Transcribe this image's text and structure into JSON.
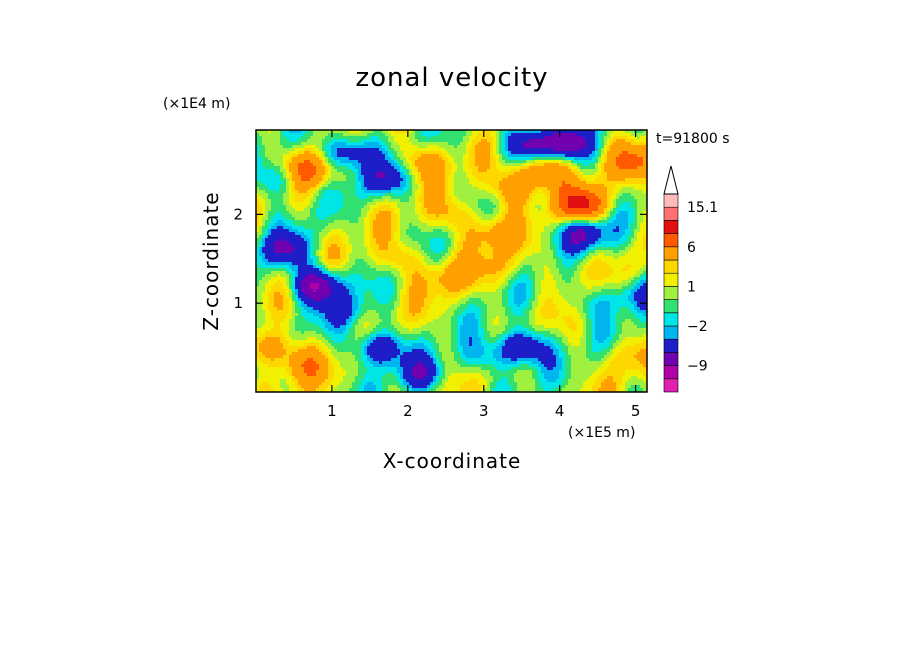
{
  "chart_data": {
    "type": "heatmap",
    "title": "zonal velocity",
    "xlabel": "X-coordinate",
    "ylabel": "Z-coordinate",
    "x_unit_label": "(×1E5 m)",
    "y_unit_label": "(×1E4 m)",
    "time_label": "t=91800 s",
    "xlim": [
      0,
      5.15
    ],
    "ylim": [
      0,
      2.95
    ],
    "x_ticks": [
      1,
      2,
      3,
      4,
      5
    ],
    "y_ticks": [
      1,
      2
    ],
    "x_tick_labels": [
      "1",
      "2",
      "3",
      "4",
      "5"
    ],
    "y_tick_labels": [
      "1",
      "2"
    ],
    "colorbar": {
      "levels": [
        -15,
        -12,
        -9,
        -6,
        -3,
        -2,
        -1,
        0,
        1,
        2,
        3,
        6,
        9,
        12,
        15.1
      ],
      "colors": [
        "#e020b0",
        "#b000a8",
        "#7000b0",
        "#1e1ec8",
        "#00b4f0",
        "#00e6e6",
        "#30e070",
        "#a0f040",
        "#f0f000",
        "#ffd700",
        "#ffa000",
        "#ff5a00",
        "#e01010",
        "#ff7070",
        "#ffbcbc"
      ],
      "labels": [
        {
          "value": 15.1,
          "text": "15.1"
        },
        {
          "value": 6,
          "text": "6"
        },
        {
          "value": 1,
          "text": "1"
        },
        {
          "value": -2,
          "text": "−2"
        },
        {
          "value": -9,
          "text": "−9"
        }
      ],
      "extend": "max"
    },
    "field_features": [
      {
        "x": 0.8,
        "z": 1.2,
        "value": -10
      },
      {
        "x": 0.4,
        "z": 1.6,
        "value": -6
      },
      {
        "x": 0.3,
        "z": 2.4,
        "value": -4
      },
      {
        "x": 0.2,
        "z": 0.5,
        "value": 5
      },
      {
        "x": 0.6,
        "z": 0.3,
        "value": 4
      },
      {
        "x": 1.6,
        "z": 0.5,
        "value": -7
      },
      {
        "x": 2.2,
        "z": 0.2,
        "value": -5
      },
      {
        "x": 3.5,
        "z": 0.5,
        "value": -8
      },
      {
        "x": 3.0,
        "z": 0.4,
        "value": -3
      },
      {
        "x": 3.2,
        "z": 1.4,
        "value": 2
      },
      {
        "x": 4.2,
        "z": 1.4,
        "value": 1.5
      },
      {
        "x": 4.4,
        "z": 1.0,
        "value": -2.5
      },
      {
        "x": 5.0,
        "z": 1.1,
        "value": -4
      },
      {
        "x": 4.3,
        "z": 2.1,
        "value": 9
      },
      {
        "x": 4.3,
        "z": 1.8,
        "value": -7
      },
      {
        "x": 3.8,
        "z": 2.5,
        "value": 7
      },
      {
        "x": 3.6,
        "z": 2.8,
        "value": -8
      },
      {
        "x": 4.1,
        "z": 2.8,
        "value": -7
      },
      {
        "x": 3.4,
        "z": 2.3,
        "value": 5
      },
      {
        "x": 3.1,
        "z": 1.8,
        "value": 4
      },
      {
        "x": 2.6,
        "z": 2.0,
        "value": 3
      },
      {
        "x": 2.5,
        "z": 1.3,
        "value": 3
      },
      {
        "x": 1.9,
        "z": 1.5,
        "value": 3
      },
      {
        "x": 1.2,
        "z": 2.7,
        "value": -7
      },
      {
        "x": 1.7,
        "z": 2.4,
        "value": -5
      },
      {
        "x": 2.2,
        "z": 2.6,
        "value": 4
      },
      {
        "x": 0.7,
        "z": 2.5,
        "value": 6
      },
      {
        "x": 5.0,
        "z": 2.6,
        "value": 5
      },
      {
        "x": 4.9,
        "z": 0.4,
        "value": 2
      },
      {
        "x": 1.2,
        "z": 0.9,
        "value": -3
      }
    ]
  }
}
